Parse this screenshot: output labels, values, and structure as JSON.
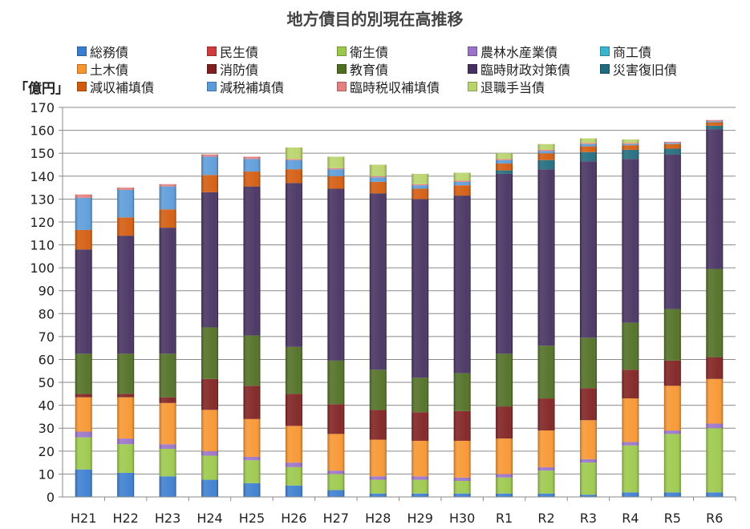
{
  "chart_data": {
    "type": "bar",
    "stacked": true,
    "title": "地方債目的別現在高推移",
    "ylabel": "「億円」",
    "xlabel": "",
    "ylim": [
      0,
      170
    ],
    "yticks": [
      0,
      10,
      20,
      30,
      40,
      50,
      60,
      70,
      80,
      90,
      100,
      110,
      120,
      130,
      140,
      150,
      160,
      170
    ],
    "grid": true,
    "legend_position": "top",
    "categories": [
      "H21",
      "H22",
      "H23",
      "H24",
      "H25",
      "H26",
      "H27",
      "H28",
      "H29",
      "H30",
      "R1",
      "R2",
      "R3",
      "R4",
      "R5",
      "R6"
    ],
    "series": [
      {
        "name": "総務債",
        "color": "#3b7dd0",
        "values": [
          12,
          10.5,
          9,
          7.5,
          6,
          5,
          3,
          1.5,
          1.5,
          1.5,
          1.5,
          1.5,
          1,
          2,
          2,
          2
        ]
      },
      {
        "name": "民生債",
        "color": "#d03b3b",
        "values": [
          0,
          0,
          0,
          0,
          0,
          0,
          0,
          0,
          0,
          0,
          0,
          0,
          0,
          0,
          0,
          0
        ]
      },
      {
        "name": "衛生債",
        "color": "#9bc84a",
        "values": [
          14,
          12.5,
          12,
          10.5,
          10,
          8,
          7,
          6,
          6,
          5.5,
          7,
          10,
          14,
          20.5,
          25.5,
          28
        ]
      },
      {
        "name": "農林水産業債",
        "color": "#9a72c8",
        "values": [
          2.5,
          2.5,
          2,
          2,
          1.5,
          2,
          1.5,
          1.5,
          1.5,
          1.5,
          1.5,
          1.5,
          1.5,
          1.5,
          1.5,
          2
        ]
      },
      {
        "name": "商工債",
        "color": "#3ab5d0",
        "values": [
          0,
          0,
          0,
          0,
          0,
          0,
          0,
          0,
          0,
          0,
          0,
          0,
          0,
          0,
          0,
          0
        ]
      },
      {
        "name": "土木債",
        "color": "#f7952f",
        "values": [
          15,
          18,
          18,
          18,
          16.5,
          16,
          16,
          16,
          15.5,
          16,
          15.5,
          16,
          17,
          19,
          19.5,
          19.5
        ]
      },
      {
        "name": "消防債",
        "color": "#7f1f1f",
        "values": [
          1.5,
          1.5,
          2.5,
          13.5,
          14.5,
          14,
          13,
          13,
          12.5,
          13,
          14,
          14,
          14,
          12.5,
          11,
          9.5
        ]
      },
      {
        "name": "教育債",
        "color": "#4f6e22",
        "values": [
          17.5,
          17.5,
          19,
          22.5,
          22,
          20.5,
          19,
          17.5,
          15,
          16.5,
          23,
          23,
          22,
          20.5,
          22.5,
          38.5
        ]
      },
      {
        "name": "臨時財政対策債",
        "color": "#45305f",
        "values": [
          45.5,
          51.5,
          55,
          59,
          65,
          71.5,
          75,
          77,
          78,
          77.5,
          78.5,
          77,
          77,
          71.5,
          67.5,
          61
        ]
      },
      {
        "name": "災害復旧債",
        "color": "#1f6a7c",
        "values": [
          0,
          0,
          0,
          0,
          0,
          0,
          0,
          0,
          0,
          0,
          1.5,
          4,
          4,
          4,
          2.5,
          1.5
        ]
      },
      {
        "name": "減収補填債",
        "color": "#d35a0c",
        "values": [
          8.5,
          8,
          8,
          7.5,
          6.5,
          6,
          5.5,
          5,
          4.5,
          4.5,
          3,
          3,
          2.5,
          2,
          2,
          1.5
        ]
      },
      {
        "name": "減税補填債",
        "color": "#5b9bd9",
        "values": [
          14,
          12,
          10,
          8,
          5.5,
          4,
          3,
          2,
          1.5,
          1.5,
          1.5,
          1,
          1,
          0.5,
          0.5,
          0.5
        ]
      },
      {
        "name": "臨時税収補填債",
        "color": "#e38080",
        "values": [
          1.5,
          1,
          1,
          1,
          1,
          0.5,
          0.5,
          0.5,
          0.5,
          0.5,
          0.5,
          0.5,
          0.5,
          0.5,
          0.5,
          0.5
        ]
      },
      {
        "name": "退職手当債",
        "color": "#b9d46a",
        "values": [
          0,
          0,
          0,
          0,
          0,
          5,
          5,
          5,
          4.5,
          3.5,
          2.5,
          2.5,
          2,
          1.5,
          0,
          0
        ]
      }
    ]
  }
}
